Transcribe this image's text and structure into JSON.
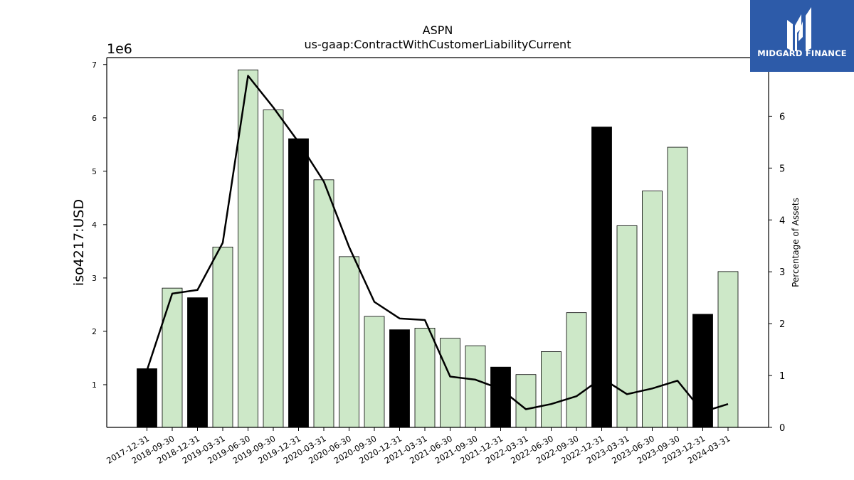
{
  "header": {
    "title_line1": "ASPN",
    "title_line2": "us-gaap:ContractWithCustomerLiabilityCurrent"
  },
  "logo": {
    "text": "MIDGARD FINANCE",
    "background": "#2d5ba9"
  },
  "chart_data": {
    "type": "bar",
    "y_offset_label": "1e6",
    "ylabel": "iso4217:USD",
    "ylabel_right": "Percentage of Assets",
    "ylim": [
      0.2,
      7.13
    ],
    "ylim_right": [
      0,
      7.13
    ],
    "yticks": [
      1,
      2,
      3,
      4,
      5,
      6,
      7
    ],
    "yticks_right": [
      0,
      1,
      2,
      3,
      4,
      5,
      6
    ],
    "categories": [
      "2017-12-31",
      "2018-09-30",
      "2018-12-31",
      "2019-03-31",
      "2019-06-30",
      "2019-09-30",
      "2019-12-31",
      "2020-03-31",
      "2020-06-30",
      "2020-09-30",
      "2020-12-31",
      "2021-03-31",
      "2021-06-30",
      "2021-09-30",
      "2021-12-31",
      "2022-03-31",
      "2022-06-30",
      "2022-09-30",
      "2022-12-31",
      "2023-03-31",
      "2023-06-30",
      "2023-09-30",
      "2023-12-31",
      "2024-03-31"
    ],
    "series": [
      {
        "values": [
          1.3,
          2.81,
          2.63,
          3.58,
          6.9,
          6.15,
          5.61,
          4.84,
          3.4,
          2.28,
          2.03,
          2.06,
          1.87,
          1.73,
          1.33,
          1.19,
          1.62,
          2.35,
          5.83,
          3.98,
          4.63,
          5.45,
          2.32,
          3.12
        ],
        "axis": "left"
      },
      {
        "type": "line",
        "values": [
          1.1,
          2.58,
          2.65,
          3.56,
          6.78,
          6.17,
          5.5,
          4.74,
          3.48,
          2.42,
          2.1,
          2.07,
          0.98,
          0.92,
          0.74,
          0.35,
          0.45,
          0.6,
          0.95,
          0.64,
          0.75,
          0.9,
          0.3,
          0.45
        ],
        "axis": "right"
      }
    ],
    "bar_colors": {
      "annual": "#000000",
      "quarterly": "#cde8c8"
    },
    "annual_categories": [
      "2017-12-31",
      "2018-12-31",
      "2019-12-31",
      "2020-12-31",
      "2021-12-31",
      "2022-12-31",
      "2023-12-31"
    ],
    "line_color": "#000000",
    "grid": false
  }
}
